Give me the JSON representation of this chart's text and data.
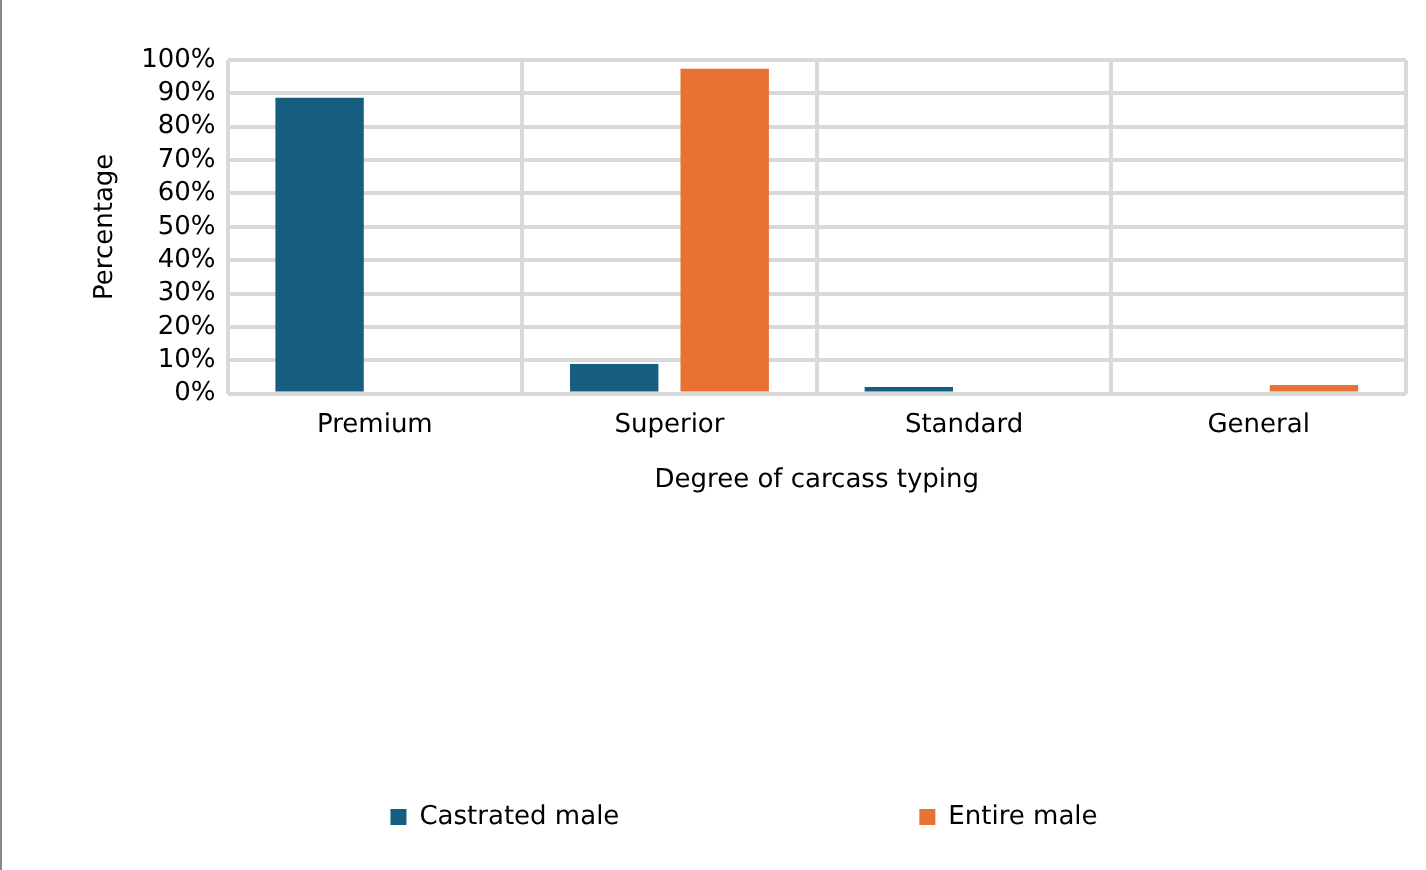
{
  "chart_data": {
    "type": "bar",
    "xlabel": "Degree of carcass typing",
    "ylabel": "Percentage",
    "categories": [
      "Premium",
      "Superior",
      "Standard",
      "General"
    ],
    "series": [
      {
        "name": "Castrated male",
        "color": "#155e80",
        "values": [
          88.7,
          8.9,
          2.0,
          0
        ]
      },
      {
        "name": "Entire male",
        "color": "#e97132",
        "values": [
          0,
          97.4,
          0,
          2.6
        ]
      }
    ],
    "ylim": [
      0,
      100
    ],
    "yticks": [
      {
        "value": 0,
        "label": "0%"
      },
      {
        "value": 10,
        "label": "10%"
      },
      {
        "value": 20,
        "label": "20%"
      },
      {
        "value": 30,
        "label": "30%"
      },
      {
        "value": 40,
        "label": "40%"
      },
      {
        "value": 50,
        "label": "50%"
      },
      {
        "value": 60,
        "label": "60%"
      },
      {
        "value": 70,
        "label": "70%"
      },
      {
        "value": 80,
        "label": "80%"
      },
      {
        "value": 90,
        "label": "90%"
      },
      {
        "value": 100,
        "label": "100%"
      }
    ],
    "grid": true,
    "legend": "bottom"
  }
}
